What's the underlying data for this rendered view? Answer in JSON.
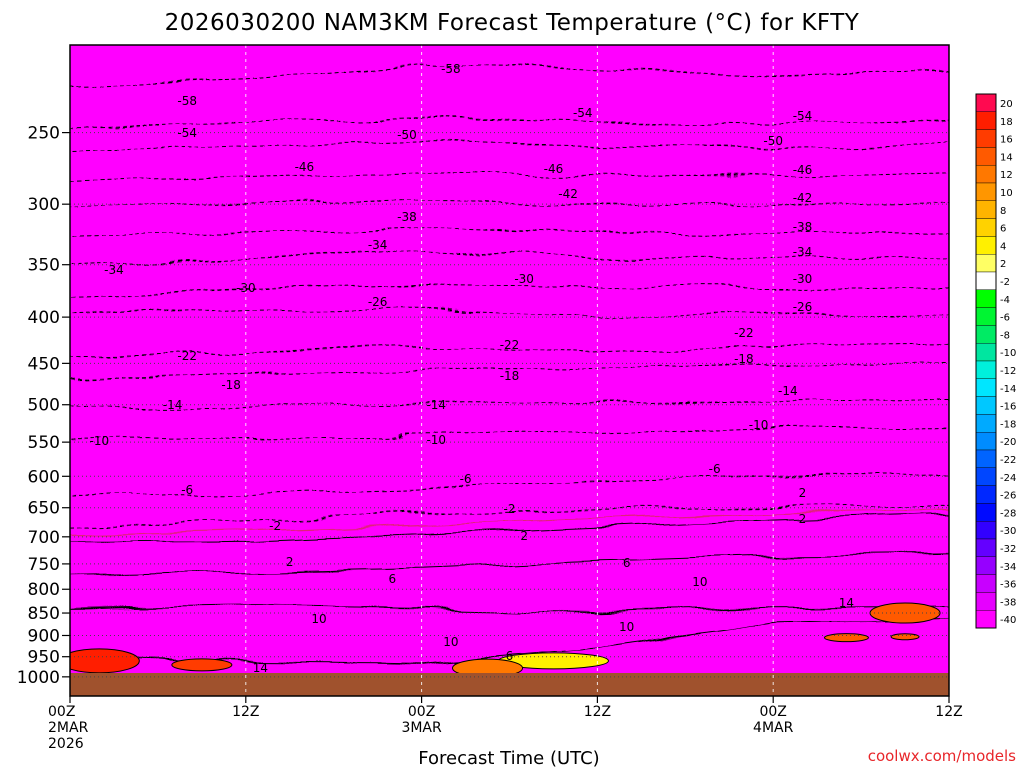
{
  "chart_data": {
    "type": "heatmap",
    "title": "2026030200 NAM3KM Forecast Temperature (°C) for KFTY",
    "xlabel": "Forecast Time (UTC)",
    "ylabel": "",
    "credit": "coolwx.com/models",
    "y_axis": {
      "scale": "log-pressure",
      "range": [
        1050,
        200
      ],
      "ticks": [
        250,
        300,
        350,
        400,
        450,
        500,
        550,
        600,
        650,
        700,
        750,
        800,
        850,
        900,
        950,
        1000
      ]
    },
    "x_axis": {
      "range_hours": [
        0,
        60
      ],
      "ticks": [
        {
          "hour": 0,
          "lines": [
            "00Z",
            "2MAR",
            "2026"
          ]
        },
        {
          "hour": 12,
          "lines": [
            "12Z"
          ]
        },
        {
          "hour": 24,
          "lines": [
            "00Z",
            "3MAR"
          ]
        },
        {
          "hour": 36,
          "lines": [
            "12Z"
          ]
        },
        {
          "hour": 48,
          "lines": [
            "00Z",
            "4MAR"
          ]
        },
        {
          "hour": 60,
          "lines": [
            "12Z"
          ]
        }
      ]
    },
    "colorbar": {
      "levels": [
        20,
        18,
        16,
        14,
        12,
        10,
        8,
        6,
        4,
        2,
        -2,
        -4,
        -6,
        -8,
        -10,
        -12,
        -14,
        -16,
        -18,
        -20,
        -22,
        -24,
        -26,
        -28,
        -30,
        -32,
        -34,
        -36,
        -38,
        -40
      ],
      "colors": [
        "#ff0a50",
        "#ff1e00",
        "#ff3c00",
        "#ff5a00",
        "#ff7800",
        "#ff9600",
        "#ffb400",
        "#ffd200",
        "#fff000",
        "#ffff64",
        "#ffffff",
        "#00ff00",
        "#00f532",
        "#00eb64",
        "#00e6a0",
        "#00f0dc",
        "#00e6ff",
        "#00c8ff",
        "#00aaff",
        "#008cff",
        "#0064ff",
        "#0046ff",
        "#0028ff",
        "#000aff",
        "#3200ff",
        "#6400ff",
        "#9600ff",
        "#c800ff",
        "#e600ff",
        "#ff00ff"
      ]
    },
    "isotherm_labels": {
      "-58": [
        [
          8,
          101
        ],
        [
          26,
          69
        ]
      ],
      "-54": [
        [
          8,
          133
        ],
        [
          35,
          113
        ],
        [
          50,
          116
        ]
      ],
      "-50": [
        [
          23,
          135
        ],
        [
          48,
          141
        ]
      ],
      "-46": [
        [
          16,
          167
        ],
        [
          33,
          169
        ],
        [
          50,
          170
        ]
      ],
      "-42": [
        [
          34,
          194
        ],
        [
          50,
          198
        ]
      ],
      "-38": [
        [
          23,
          217
        ],
        [
          50,
          227
        ]
      ],
      "-34": [
        [
          3,
          270
        ],
        [
          21,
          245
        ],
        [
          50,
          252
        ]
      ],
      "-30": [
        [
          12,
          288
        ],
        [
          31,
          279
        ],
        [
          50,
          279
        ]
      ],
      "-26": [
        [
          21,
          302
        ],
        [
          50,
          307
        ]
      ],
      "-22": [
        [
          8,
          356
        ],
        [
          30,
          345
        ],
        [
          46,
          333
        ]
      ],
      "-18": [
        [
          11,
          385
        ],
        [
          30,
          376
        ],
        [
          46,
          359
        ]
      ],
      "-14": [
        [
          7,
          405
        ],
        [
          25,
          405
        ],
        [
          49,
          391
        ]
      ],
      "-10": [
        [
          2,
          441
        ],
        [
          25,
          440
        ],
        [
          47,
          425
        ]
      ],
      "-6": [
        [
          8,
          490
        ],
        [
          27,
          479
        ],
        [
          44,
          469
        ]
      ],
      "-2": [
        [
          14,
          526
        ],
        [
          30,
          509
        ]
      ],
      "2": [
        [
          15,
          562
        ],
        [
          31,
          536
        ],
        [
          50,
          493
        ],
        [
          50,
          519
        ]
      ],
      "6": [
        [
          22,
          579
        ],
        [
          38,
          563
        ],
        [
          30,
          656
        ]
      ],
      "10": [
        [
          17,
          619
        ],
        [
          26,
          642
        ],
        [
          38,
          627
        ],
        [
          43,
          582
        ]
      ],
      "14": [
        [
          13,
          668
        ],
        [
          53,
          603
        ]
      ]
    }
  }
}
